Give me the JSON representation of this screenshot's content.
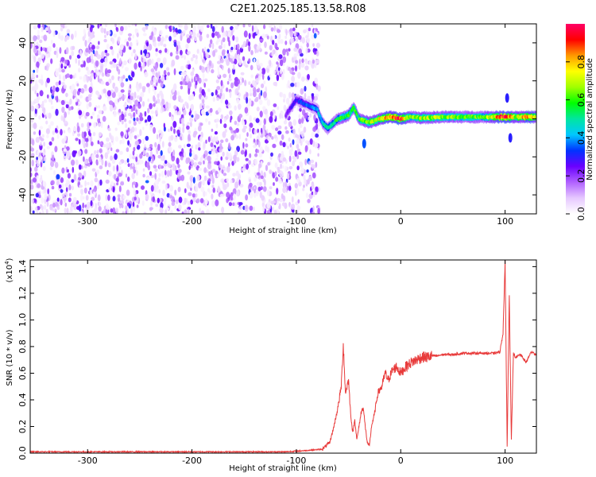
{
  "title": "C2E1.2025.185.13.58.R08",
  "chart_data": [
    {
      "type": "heatmap",
      "xlabel": "Height of straight line (km)",
      "ylabel": "Frequency (Hz)",
      "xlim": [
        -355,
        130
      ],
      "ylim": [
        -50,
        50
      ],
      "xticks": [
        -300,
        -200,
        -100,
        0,
        100
      ],
      "xtick_labels": [
        "-300",
        "-200",
        "-100",
        "0",
        "100"
      ],
      "yticks": [
        -40,
        -20,
        0,
        20,
        40
      ],
      "ytick_labels": [
        "-40",
        "-20",
        "0",
        "20",
        "40"
      ],
      "colorbar": {
        "label": "Normalized spectral amplitude",
        "range": [
          0,
          1
        ],
        "ticks": [
          0.0,
          0.2,
          0.4,
          0.6,
          0.8
        ],
        "tick_labels": [
          "0.0",
          "0.2",
          "0.4",
          "0.6",
          "0.8"
        ],
        "colormap": [
          "#ffffff",
          "#e6c8ff",
          "#b060ff",
          "#6a00ff",
          "#0033ff",
          "#00c8ff",
          "#00e6a0",
          "#00ff00",
          "#a0ff00",
          "#ffff00",
          "#ff9900",
          "#ff0000",
          "#ff0066"
        ]
      },
      "noise_region": {
        "x_range": [
          -355,
          -78
        ],
        "amplitude_range": [
          0.02,
          0.3
        ]
      },
      "signal_ridge": [
        {
          "x": -110,
          "y": 2,
          "amp": 0.2
        },
        {
          "x": -100,
          "y": 10,
          "amp": 0.3
        },
        {
          "x": -80,
          "y": 5,
          "amp": 0.4
        },
        {
          "x": -75,
          "y": -2,
          "amp": 0.45
        },
        {
          "x": -70,
          "y": -5,
          "amp": 0.5
        },
        {
          "x": -60,
          "y": 0,
          "amp": 0.55
        },
        {
          "x": -50,
          "y": 2,
          "amp": 0.6
        },
        {
          "x": -45,
          "y": 6,
          "amp": 0.55
        },
        {
          "x": -40,
          "y": 0,
          "amp": 0.6
        },
        {
          "x": -30,
          "y": -2,
          "amp": 0.7
        },
        {
          "x": -20,
          "y": 0,
          "amp": 0.75
        },
        {
          "x": -10,
          "y": 1,
          "amp": 0.85
        },
        {
          "x": 0,
          "y": 0,
          "amp": 0.9
        },
        {
          "x": 10,
          "y": 1,
          "amp": 0.6
        },
        {
          "x": 20,
          "y": 0.5,
          "amp": 0.7
        },
        {
          "x": 40,
          "y": 1,
          "amp": 0.65
        },
        {
          "x": 60,
          "y": 1,
          "amp": 0.6
        },
        {
          "x": 80,
          "y": 1,
          "amp": 0.6
        },
        {
          "x": 95,
          "y": 1,
          "amp": 0.85
        },
        {
          "x": 100,
          "y": 1,
          "amp": 0.95
        },
        {
          "x": 110,
          "y": 1,
          "amp": 0.7
        },
        {
          "x": 120,
          "y": 1,
          "amp": 0.85
        },
        {
          "x": 130,
          "y": 1,
          "amp": 0.75
        }
      ],
      "features": [
        {
          "x": -35,
          "y": -13,
          "amp": 0.35
        },
        {
          "x": 102,
          "y": 11,
          "amp": 0.3
        },
        {
          "x": 105,
          "y": -10,
          "amp": 0.3
        }
      ]
    },
    {
      "type": "line",
      "xlabel": "Height of straight line (km)",
      "ylabel": "SNR (10 * v/v)",
      "y_scale_label": "(x10",
      "y_scale_exponent": "4",
      "xlim": [
        -355,
        130
      ],
      "ylim": [
        0,
        1.45
      ],
      "xticks": [
        -300,
        -200,
        -100,
        0,
        100
      ],
      "xtick_labels": [
        "-300",
        "-200",
        "-100",
        "0",
        "100"
      ],
      "yticks": [
        0.0,
        0.2,
        0.4,
        0.6,
        0.8,
        1.0,
        1.2,
        1.4
      ],
      "ytick_labels": [
        "0.0",
        "0.2",
        "0.4",
        "0.6",
        "0.8",
        "1.0",
        "1.2",
        "1.4"
      ],
      "color": "#e83a3a",
      "series": [
        {
          "x": [
            -355,
            -300,
            -250,
            -200,
            -150,
            -110,
            -90,
            -75,
            -68,
            -64,
            -60,
            -57,
            -55,
            -53,
            -50,
            -48,
            -46,
            -44,
            -42,
            -40,
            -38,
            -36,
            -34,
            -32,
            -30,
            -28,
            -25,
            -22,
            -18,
            -15,
            -12,
            -8,
            -4,
            0,
            5,
            10,
            15,
            20,
            25,
            30,
            35,
            40,
            50,
            60,
            70,
            80,
            90,
            95,
            98,
            100,
            102,
            104,
            106,
            108,
            110,
            115,
            120,
            125,
            130
          ],
          "y": [
            0.01,
            0.01,
            0.01,
            0.01,
            0.01,
            0.01,
            0.02,
            0.03,
            0.08,
            0.2,
            0.35,
            0.5,
            0.82,
            0.45,
            0.55,
            0.3,
            0.15,
            0.25,
            0.1,
            0.2,
            0.3,
            0.35,
            0.2,
            0.08,
            0.05,
            0.2,
            0.3,
            0.45,
            0.5,
            0.6,
            0.55,
            0.62,
            0.65,
            0.6,
            0.65,
            0.68,
            0.7,
            0.72,
            0.72,
            0.73,
            0.73,
            0.74,
            0.74,
            0.75,
            0.75,
            0.75,
            0.75,
            0.76,
            0.9,
            1.43,
            0.05,
            1.2,
            0.1,
            0.75,
            0.72,
            0.74,
            0.68,
            0.76,
            0.74
          ]
        }
      ]
    }
  ]
}
